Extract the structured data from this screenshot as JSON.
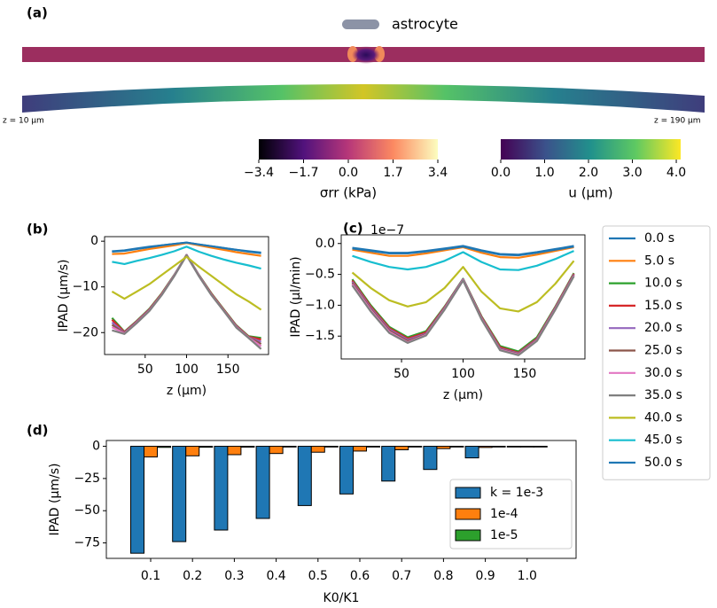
{
  "chart_data": [
    {
      "type": "colorbar",
      "panel": "(a)",
      "legend": "astrocyte",
      "annotations": [
        "z = 10 µm",
        "z = 190 µm"
      ],
      "colorbars": [
        {
          "label": "σrr (kPa)",
          "colormap": "magma",
          "lim": [
            -3.4,
            3.4
          ],
          "ticks": [
            {
              "value": -3.4,
              "label": "−3.4"
            },
            {
              "value": -1.7,
              "label": "−1.7"
            },
            {
              "value": 0,
              "label": "0.0"
            },
            1.7,
            3.4
          ]
        },
        {
          "label": "u (µm)",
          "colormap": "viridis",
          "lim": [
            0,
            4.1
          ],
          "ticks": [
            {
              "value": 0,
              "label": "0.0"
            },
            {
              "value": 1,
              "label": "1.0"
            },
            {
              "value": 2,
              "label": "2.0"
            },
            {
              "value": 3,
              "label": "3.0"
            },
            {
              "value": 4,
              "label": "4.0"
            }
          ]
        }
      ]
    },
    {
      "type": "line",
      "panel": "(b)",
      "xlabel": "z (µm)",
      "ylabel": "IPAD (µm/s)",
      "x": [
        10,
        25,
        40,
        55,
        70,
        85,
        100,
        115,
        130,
        145,
        160,
        175,
        190
      ],
      "xlim": [
        1,
        199
      ],
      "xticks": [
        50,
        100,
        150
      ],
      "ylim": [
        -24.8,
        1.0
      ],
      "yticks": [
        0,
        {
          "value": -10,
          "label": "−10"
        },
        {
          "value": -20,
          "label": "−20"
        }
      ],
      "series": [
        {
          "color": "#1f77b4",
          "values": [
            -2.2,
            -2.0,
            -1.6,
            -1.2,
            -0.9,
            -0.6,
            -0.3,
            -0.7,
            -1.1,
            -1.5,
            -1.9,
            -2.2,
            -2.5
          ]
        },
        {
          "color": "#ff7f0e",
          "values": [
            -2.8,
            -2.7,
            -2.2,
            -1.7,
            -1.3,
            -0.9,
            -0.4,
            -0.9,
            -1.4,
            -1.9,
            -2.4,
            -2.8,
            -3.2
          ]
        },
        {
          "color": "#2ca02c",
          "values": [
            -16.8,
            -19.8,
            -17.4,
            -14.8,
            -11.4,
            -7.4,
            -3.0,
            -7.4,
            -11.4,
            -14.9,
            -18.4,
            -20.8,
            -21.2
          ]
        },
        {
          "color": "#d62728",
          "values": [
            -17.2,
            -19.9,
            -17.5,
            -14.9,
            -11.5,
            -7.5,
            -3.0,
            -7.5,
            -11.5,
            -15.0,
            -18.5,
            -20.9,
            -21.5
          ]
        },
        {
          "color": "#9467bd",
          "values": [
            -17.8,
            -20.0,
            -17.6,
            -15.0,
            -11.6,
            -7.5,
            -3.0,
            -7.5,
            -11.6,
            -15.1,
            -18.6,
            -21.0,
            -22.0
          ]
        },
        {
          "color": "#8c564b",
          "values": [
            -18.3,
            -20.1,
            -17.7,
            -15.1,
            -11.6,
            -7.6,
            -3.1,
            -7.6,
            -11.6,
            -15.1,
            -18.7,
            -21.0,
            -22.5
          ]
        },
        {
          "color": "#e377c2",
          "values": [
            -18.8,
            -20.2,
            -17.8,
            -15.2,
            -11.7,
            -7.6,
            -3.1,
            -7.6,
            -11.7,
            -15.2,
            -18.8,
            -21.1,
            -23.0
          ]
        },
        {
          "color": "#7f7f7f",
          "values": [
            -19.5,
            -20.3,
            -17.9,
            -15.3,
            -11.8,
            -7.7,
            -3.1,
            -7.7,
            -11.8,
            -15.3,
            -18.9,
            -21.2,
            -23.6
          ]
        },
        {
          "color": "#bcbd22",
          "values": [
            -11.0,
            -12.6,
            -11.0,
            -9.4,
            -7.4,
            -5.4,
            -3.4,
            -5.6,
            -7.6,
            -9.6,
            -11.6,
            -13.2,
            -15.0
          ]
        },
        {
          "color": "#17becf",
          "values": [
            -4.5,
            -5.0,
            -4.3,
            -3.7,
            -3.0,
            -2.2,
            -1.2,
            -2.3,
            -3.2,
            -4.0,
            -4.7,
            -5.3,
            -6.0
          ]
        },
        {
          "color": "#1f77b4",
          "values": [
            -2.3,
            -2.1,
            -1.7,
            -1.3,
            -0.9,
            -0.6,
            -0.3,
            -0.7,
            -1.1,
            -1.5,
            -1.9,
            -2.3,
            -2.6
          ]
        }
      ]
    },
    {
      "type": "line",
      "panel": "(c)",
      "offset_text": "1e−7",
      "xlabel": "z (µm)",
      "ylabel": "IPAD (µl/min)",
      "legend": "outside right",
      "x": [
        10,
        25,
        40,
        55,
        70,
        85,
        100,
        115,
        130,
        145,
        160,
        175,
        190
      ],
      "xlim": [
        1,
        199
      ],
      "xticks": [
        50,
        100,
        150
      ],
      "ylim": [
        -1.87,
        0.14
      ],
      "yticks": [
        {
          "value": 0,
          "label": "0.0"
        },
        {
          "value": -0.5,
          "label": "−0.5"
        },
        {
          "value": -1.0,
          "label": "−1.0"
        },
        {
          "value": -1.5,
          "label": "−1.5"
        }
      ],
      "series": [
        {
          "name": "0.0 s",
          "color": "#1f77b4",
          "values": [
            -0.07,
            -0.11,
            -0.15,
            -0.15,
            -0.12,
            -0.08,
            -0.04,
            -0.11,
            -0.17,
            -0.18,
            -0.14,
            -0.09,
            -0.04
          ]
        },
        {
          "name": "5.0 s",
          "color": "#ff7f0e",
          "values": [
            -0.1,
            -0.15,
            -0.2,
            -0.2,
            -0.16,
            -0.11,
            -0.06,
            -0.15,
            -0.22,
            -0.23,
            -0.18,
            -0.12,
            -0.06
          ]
        },
        {
          "name": "10.0 s",
          "color": "#2ca02c",
          "values": [
            -0.58,
            -1.0,
            -1.35,
            -1.52,
            -1.42,
            -1.02,
            -0.57,
            -1.18,
            -1.66,
            -1.75,
            -1.52,
            -1.02,
            -0.48
          ]
        },
        {
          "name": "15.0 s",
          "color": "#d62728",
          "values": [
            -0.6,
            -1.02,
            -1.37,
            -1.54,
            -1.44,
            -1.03,
            -0.58,
            -1.19,
            -1.68,
            -1.77,
            -1.54,
            -1.03,
            -0.49
          ]
        },
        {
          "name": "20.0 s",
          "color": "#9467bd",
          "values": [
            -0.62,
            -1.04,
            -1.39,
            -1.56,
            -1.46,
            -1.04,
            -0.58,
            -1.2,
            -1.7,
            -1.78,
            -1.55,
            -1.04,
            -0.5
          ]
        },
        {
          "name": "25.0 s",
          "color": "#8c564b",
          "values": [
            -0.64,
            -1.06,
            -1.41,
            -1.58,
            -1.47,
            -1.05,
            -0.59,
            -1.21,
            -1.71,
            -1.79,
            -1.56,
            -1.05,
            -0.51
          ]
        },
        {
          "name": "30.0 s",
          "color": "#e377c2",
          "values": [
            -0.66,
            -1.08,
            -1.43,
            -1.6,
            -1.48,
            -1.06,
            -0.59,
            -1.22,
            -1.72,
            -1.8,
            -1.57,
            -1.06,
            -0.52
          ]
        },
        {
          "name": "35.0 s",
          "color": "#7f7f7f",
          "values": [
            -0.68,
            -1.1,
            -1.45,
            -1.61,
            -1.49,
            -1.07,
            -0.6,
            -1.23,
            -1.73,
            -1.81,
            -1.58,
            -1.07,
            -0.53
          ]
        },
        {
          "name": "40.0 s",
          "color": "#bcbd22",
          "values": [
            -0.47,
            -0.72,
            -0.92,
            -1.02,
            -0.95,
            -0.72,
            -0.38,
            -0.78,
            -1.05,
            -1.1,
            -0.95,
            -0.65,
            -0.28
          ]
        },
        {
          "name": "45.0 s",
          "color": "#17becf",
          "values": [
            -0.2,
            -0.3,
            -0.38,
            -0.42,
            -0.38,
            -0.28,
            -0.14,
            -0.3,
            -0.42,
            -0.43,
            -0.36,
            -0.25,
            -0.12
          ]
        },
        {
          "name": "50.0 s",
          "color": "#1f77b4",
          "values": [
            -0.08,
            -0.12,
            -0.16,
            -0.16,
            -0.13,
            -0.09,
            -0.05,
            -0.12,
            -0.18,
            -0.19,
            -0.15,
            -0.1,
            -0.05
          ]
        }
      ]
    },
    {
      "type": "bar",
      "panel": "(d)",
      "xlabel": "K0/K1",
      "ylabel": "IPAD (µm/s)",
      "legend": "center right",
      "categories": [
        "0.1",
        "0.2",
        "0.3",
        "0.4",
        "0.5",
        "0.6",
        "0.7",
        "0.8",
        "0.9",
        "1.0"
      ],
      "ylim": [
        -87,
        4.5
      ],
      "yticks": [
        0,
        {
          "value": -25,
          "label": "−25"
        },
        {
          "value": -50,
          "label": "−50"
        },
        {
          "value": -75,
          "label": "−75"
        }
      ],
      "series": [
        {
          "name": "k = 1e-3",
          "color": "#1f77b4",
          "values": [
            -83,
            -74,
            -65,
            -56,
            -46,
            -37,
            -27,
            -18,
            -9,
            0
          ]
        },
        {
          "name": "1e-4",
          "color": "#ff7f0e",
          "values": [
            -8.3,
            -7.4,
            -6.5,
            -5.6,
            -4.6,
            -3.7,
            -2.7,
            -1.8,
            -0.9,
            0
          ]
        },
        {
          "name": "1e-5",
          "color": "#2ca02c",
          "values": [
            -0.83,
            -0.74,
            -0.65,
            -0.56,
            -0.46,
            -0.37,
            -0.27,
            -0.18,
            -0.09,
            0
          ]
        }
      ]
    }
  ]
}
